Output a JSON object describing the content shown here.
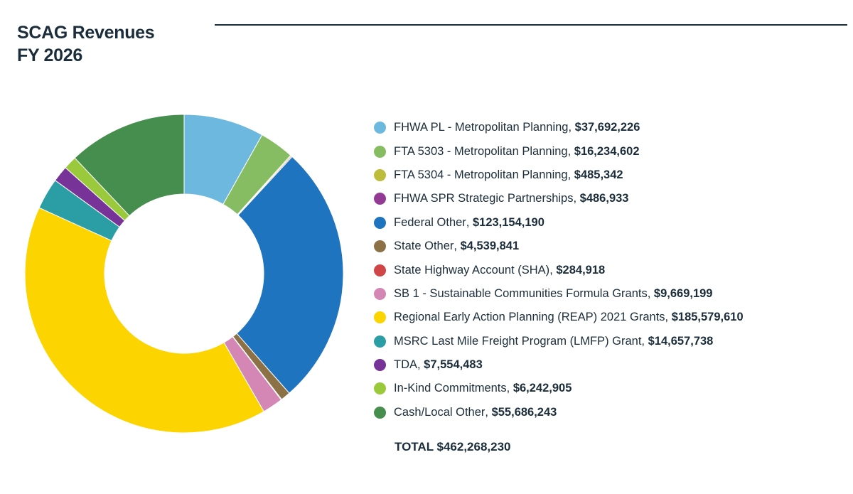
{
  "chart_data": {
    "type": "pie",
    "donut": true,
    "title": "SCAG Revenues\nFY 2026",
    "title_lines": [
      "SCAG Revenues",
      "FY 2026"
    ],
    "legend_placement": "right",
    "slices": [
      {
        "name": "FHWA PL - Metropolitan Planning",
        "value": 37692226,
        "value_label": "$37,692,226",
        "color": "#6cb8df"
      },
      {
        "name": "FTA 5303 - Metropolitan Planning",
        "value": 16234602,
        "value_label": "$16,234,602",
        "color": "#87bd62"
      },
      {
        "name": "FTA 5304 - Metropolitan Planning",
        "value": 485342,
        "value_label": "$485,342",
        "color": "#bdbd3b"
      },
      {
        "name": "FHWA SPR Strategic Partnerships",
        "value": 486933,
        "value_label": "$486,933",
        "color": "#933b94"
      },
      {
        "name": "Federal Other",
        "value": 123154190,
        "value_label": "$123,154,190",
        "color": "#1f74bf"
      },
      {
        "name": "State Other",
        "value": 4539841,
        "value_label": "$4,539,841",
        "color": "#8d7146"
      },
      {
        "name": "State Highway Account (SHA)",
        "value": 284918,
        "value_label": "$284,918",
        "color": "#d04545"
      },
      {
        "name": "SB 1 - Sustainable Communities Formula Grants",
        "value": 9669199,
        "value_label": "$9,669,199",
        "color": "#d486b4"
      },
      {
        "name": "Regional Early Action Planning (REAP) 2021 Grants",
        "value": 185579610,
        "value_label": "$185,579,610",
        "color": "#fcd400"
      },
      {
        "name": "MSRC Last Mile Freight Program (LMFP) Grant",
        "value": 14657738,
        "value_label": "$14,657,738",
        "color": "#2a9ea4"
      },
      {
        "name": "TDA",
        "value": 7554483,
        "value_label": "$7,554,483",
        "color": "#773398"
      },
      {
        "name": "In-Kind Commitments",
        "value": 6242905,
        "value_label": "$6,242,905",
        "color": "#9ac93b"
      },
      {
        "name": "Cash/Local Other",
        "value": 55686243,
        "value_label": "$55,686,243",
        "color": "#458e4d"
      }
    ],
    "total_label": "TOTAL $462,268,230"
  }
}
